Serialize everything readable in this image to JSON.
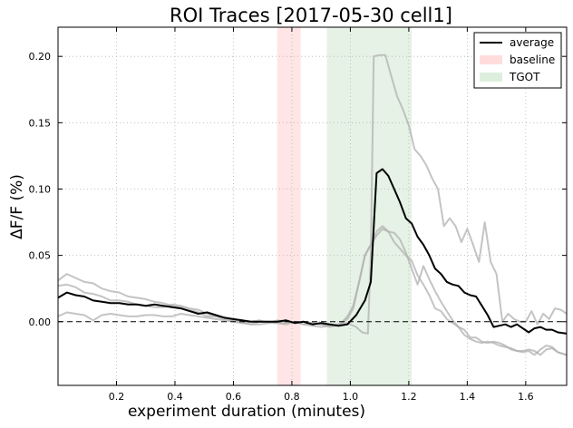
{
  "chart_data": {
    "type": "line",
    "title": "ROI Traces [2017-05-30 cell1]",
    "xlabel": "experiment duration (minutes)",
    "ylabel": "ΔF/F (%)",
    "xlim": [
      0.0,
      1.74
    ],
    "ylim": [
      -0.048,
      0.222
    ],
    "xticks": [
      0.2,
      0.4,
      0.6,
      0.8,
      1.0,
      1.2,
      1.4,
      1.6
    ],
    "xtick_labels": [
      "0.2",
      "0.4",
      "0.6",
      "0.8",
      "1.0",
      "1.2",
      "1.4",
      "1.6"
    ],
    "yticks": [
      0.0,
      0.05,
      0.1,
      0.15,
      0.2
    ],
    "ytick_labels": [
      "0.00",
      "0.05",
      "0.10",
      "0.15",
      "0.20"
    ],
    "grid": true,
    "legend_position": "top-right",
    "zero_line": {
      "y": 0.0,
      "style": "dashed",
      "color": "#000000"
    },
    "regions": [
      {
        "name": "baseline",
        "x_start": 0.75,
        "x_end": 0.83,
        "color": "#ffcccc"
      },
      {
        "name": "TGOT",
        "x_start": 0.92,
        "x_end": 1.21,
        "color": "#cce5cc"
      }
    ],
    "legend": [
      {
        "label": "average",
        "type": "line",
        "color": "#000000"
      },
      {
        "label": "baseline",
        "type": "patch",
        "color": "#ffdddd"
      },
      {
        "label": "TGOT",
        "type": "patch",
        "color": "#ddeedd"
      }
    ],
    "series": [
      {
        "name": "average",
        "color": "#000000",
        "x": [
          0.0,
          0.03,
          0.06,
          0.09,
          0.12,
          0.15,
          0.18,
          0.21,
          0.24,
          0.27,
          0.3,
          0.33,
          0.36,
          0.39,
          0.42,
          0.45,
          0.48,
          0.51,
          0.54,
          0.57,
          0.6,
          0.63,
          0.66,
          0.69,
          0.72,
          0.75,
          0.78,
          0.81,
          0.84,
          0.87,
          0.9,
          0.93,
          0.96,
          0.99,
          1.02,
          1.05,
          1.07,
          1.09,
          1.11,
          1.13,
          1.15,
          1.17,
          1.19,
          1.21,
          1.23,
          1.25,
          1.27,
          1.29,
          1.31,
          1.33,
          1.35,
          1.37,
          1.39,
          1.41,
          1.43,
          1.45,
          1.47,
          1.49,
          1.51,
          1.53,
          1.55,
          1.57,
          1.59,
          1.61,
          1.63,
          1.65,
          1.67,
          1.69,
          1.71,
          1.74
        ],
        "y": [
          0.018,
          0.022,
          0.02,
          0.019,
          0.016,
          0.015,
          0.014,
          0.014,
          0.013,
          0.013,
          0.012,
          0.013,
          0.012,
          0.011,
          0.01,
          0.008,
          0.006,
          0.007,
          0.005,
          0.003,
          0.002,
          0.001,
          0.0,
          0.0,
          0.0,
          0.0,
          0.001,
          -0.001,
          0.0,
          -0.002,
          -0.001,
          -0.002,
          -0.003,
          -0.002,
          0.005,
          0.016,
          0.03,
          0.112,
          0.115,
          0.11,
          0.1,
          0.09,
          0.078,
          0.074,
          0.064,
          0.058,
          0.05,
          0.04,
          0.036,
          0.03,
          0.028,
          0.027,
          0.022,
          0.02,
          0.019,
          0.012,
          0.005,
          -0.004,
          -0.003,
          -0.002,
          -0.004,
          -0.002,
          -0.005,
          -0.008,
          -0.005,
          -0.004,
          -0.006,
          -0.006,
          -0.008,
          -0.009
        ]
      },
      {
        "name": "",
        "color": "#b0b0b0",
        "x": [
          0.0,
          0.03,
          0.06,
          0.09,
          0.12,
          0.15,
          0.18,
          0.21,
          0.24,
          0.27,
          0.3,
          0.33,
          0.36,
          0.39,
          0.42,
          0.45,
          0.48,
          0.51,
          0.54,
          0.57,
          0.6,
          0.63,
          0.66,
          0.69,
          0.72,
          0.75,
          0.78,
          0.81,
          0.84,
          0.87,
          0.9,
          0.93,
          0.96,
          0.99,
          1.02,
          1.04,
          1.06,
          1.07,
          1.08,
          1.1,
          1.12,
          1.14,
          1.16,
          1.18,
          1.2,
          1.22,
          1.24,
          1.26,
          1.28,
          1.3,
          1.32,
          1.34,
          1.36,
          1.38,
          1.4,
          1.42,
          1.44,
          1.46,
          1.48,
          1.5,
          1.52,
          1.54,
          1.56,
          1.58,
          1.6,
          1.62,
          1.64,
          1.66,
          1.68,
          1.7,
          1.72,
          1.74
        ],
        "y": [
          0.031,
          0.036,
          0.033,
          0.03,
          0.029,
          0.025,
          0.023,
          0.022,
          0.019,
          0.018,
          0.017,
          0.015,
          0.014,
          0.012,
          0.011,
          0.009,
          0.007,
          0.004,
          0.004,
          0.002,
          0.001,
          -0.001,
          0.0,
          0.001,
          -0.001,
          0.001,
          0.0,
          -0.001,
          0.0,
          -0.001,
          -0.002,
          -0.003,
          -0.002,
          -0.001,
          -0.004,
          -0.008,
          -0.009,
          0.05,
          0.2,
          0.201,
          0.201,
          0.185,
          0.17,
          0.16,
          0.148,
          0.13,
          0.125,
          0.118,
          0.108,
          0.1,
          0.072,
          0.078,
          0.072,
          0.06,
          0.07,
          0.058,
          0.045,
          0.075,
          0.045,
          0.036,
          0.0,
          0.006,
          0.002,
          0.0,
          0.0,
          0.008,
          -0.002,
          0.006,
          0.002,
          0.01,
          0.009,
          0.006
        ]
      },
      {
        "name": "",
        "color": "#b0b0b0",
        "x": [
          0.0,
          0.03,
          0.06,
          0.09,
          0.12,
          0.15,
          0.18,
          0.21,
          0.24,
          0.27,
          0.3,
          0.33,
          0.36,
          0.39,
          0.42,
          0.45,
          0.48,
          0.51,
          0.54,
          0.57,
          0.6,
          0.63,
          0.66,
          0.69,
          0.72,
          0.75,
          0.78,
          0.81,
          0.84,
          0.87,
          0.9,
          0.93,
          0.96,
          0.99,
          1.01,
          1.03,
          1.05,
          1.07,
          1.09,
          1.11,
          1.13,
          1.15,
          1.17,
          1.19,
          1.21,
          1.23,
          1.25,
          1.27,
          1.29,
          1.31,
          1.33,
          1.35,
          1.37,
          1.39,
          1.41,
          1.43,
          1.45,
          1.47,
          1.49,
          1.51,
          1.53,
          1.55,
          1.57,
          1.59,
          1.61,
          1.63,
          1.65,
          1.67,
          1.69,
          1.71,
          1.74
        ],
        "y": [
          0.027,
          0.028,
          0.026,
          0.022,
          0.021,
          0.019,
          0.016,
          0.016,
          0.015,
          0.013,
          0.012,
          0.011,
          0.011,
          0.013,
          0.012,
          0.01,
          0.009,
          0.006,
          0.004,
          0.003,
          0.001,
          0.0,
          -0.002,
          0.0,
          0.0,
          -0.001,
          -0.001,
          0.0,
          -0.002,
          -0.001,
          -0.002,
          -0.004,
          -0.002,
          0.002,
          0.01,
          0.03,
          0.05,
          0.058,
          0.065,
          0.07,
          0.068,
          0.067,
          0.062,
          0.052,
          0.04,
          0.028,
          0.042,
          0.032,
          0.023,
          0.015,
          0.008,
          0.001,
          -0.004,
          -0.01,
          -0.013,
          -0.015,
          -0.016,
          -0.015,
          -0.016,
          -0.018,
          -0.019,
          -0.02,
          -0.022,
          -0.023,
          -0.022,
          -0.025,
          -0.021,
          -0.018,
          -0.019,
          -0.023,
          -0.025
        ]
      },
      {
        "name": "",
        "color": "#b0b0b0",
        "x": [
          0.0,
          0.03,
          0.06,
          0.09,
          0.12,
          0.15,
          0.18,
          0.21,
          0.24,
          0.27,
          0.3,
          0.33,
          0.36,
          0.39,
          0.42,
          0.45,
          0.48,
          0.51,
          0.54,
          0.57,
          0.6,
          0.63,
          0.66,
          0.69,
          0.72,
          0.75,
          0.78,
          0.81,
          0.84,
          0.87,
          0.9,
          0.93,
          0.96,
          0.99,
          1.01,
          1.03,
          1.05,
          1.07,
          1.09,
          1.11,
          1.13,
          1.15,
          1.17,
          1.19,
          1.21,
          1.23,
          1.25,
          1.27,
          1.29,
          1.31,
          1.33,
          1.35,
          1.37,
          1.39,
          1.41,
          1.43,
          1.45,
          1.47,
          1.49,
          1.51,
          1.53,
          1.55,
          1.57,
          1.59,
          1.61,
          1.63,
          1.65,
          1.67,
          1.69,
          1.71,
          1.74
        ],
        "y": [
          0.004,
          0.007,
          0.006,
          0.005,
          0.001,
          0.005,
          0.006,
          0.005,
          0.004,
          0.004,
          0.005,
          0.005,
          0.004,
          0.004,
          0.006,
          0.005,
          0.004,
          0.003,
          0.002,
          0.001,
          0.0,
          -0.001,
          -0.002,
          -0.002,
          -0.001,
          -0.001,
          -0.002,
          0.0,
          -0.002,
          -0.003,
          -0.004,
          -0.003,
          -0.003,
          0.004,
          0.012,
          0.03,
          0.05,
          0.058,
          0.068,
          0.072,
          0.068,
          0.06,
          0.055,
          0.05,
          0.046,
          0.035,
          0.028,
          0.02,
          0.01,
          0.008,
          0.002,
          -0.001,
          -0.004,
          -0.006,
          -0.012,
          -0.012,
          -0.015,
          -0.016,
          -0.015,
          -0.016,
          -0.018,
          -0.021,
          -0.022,
          -0.022,
          -0.021,
          -0.022,
          -0.025,
          -0.021,
          -0.02,
          -0.023,
          -0.025
        ]
      }
    ]
  }
}
